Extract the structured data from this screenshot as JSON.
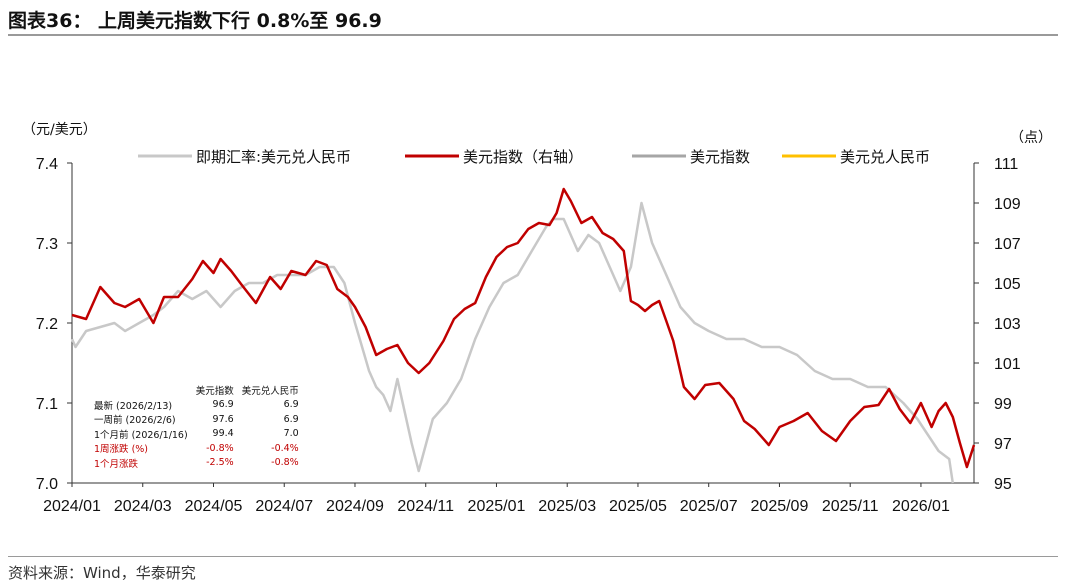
{
  "title": "图表36： 上周美元指数下行 0.8%至 96.9",
  "source": "资料来源：Wind，华泰研究",
  "colors": {
    "cny": "#c8c8c8",
    "dxy": "#c00000",
    "dxy_gray": "#a6a6a6",
    "cny_yellow": "#ffc000",
    "down": "#c00000"
  },
  "chart_data": {
    "type": "line",
    "left_unit": "（元/美元）",
    "right_unit": "（点）",
    "y_left": {
      "range": [
        7.0,
        7.4
      ],
      "ticks": [
        "7.0",
        "7.1",
        "7.2",
        "7.3",
        "7.4"
      ]
    },
    "y_right": {
      "range": [
        95,
        111
      ],
      "ticks": [
        "95",
        "97",
        "99",
        "101",
        "103",
        "105",
        "107",
        "109",
        "111"
      ]
    },
    "x": {
      "range": [
        0,
        25.5
      ],
      "ticks": [
        "2024/01",
        "2024/03",
        "2024/05",
        "2024/07",
        "2024/09",
        "2024/11",
        "2025/01",
        "2025/03",
        "2025/05",
        "2025/07",
        "2025/09",
        "2025/11",
        "2026/01"
      ]
    },
    "legend": [
      "即期汇率:美元兑人民币",
      "美元指数（右轴）",
      "美元指数",
      "美元兑人民币"
    ],
    "series": [
      {
        "name": "即期汇率:美元兑人民币",
        "axis": "left",
        "x": [
          0.0,
          0.1,
          0.4,
          0.8,
          1.2,
          1.5,
          1.9,
          2.3,
          2.6,
          3.0,
          3.4,
          3.8,
          4.2,
          4.6,
          5.0,
          5.4,
          5.8,
          6.2,
          6.6,
          7.0,
          7.4,
          7.7,
          8.0,
          8.2,
          8.4,
          8.6,
          8.8,
          9.0,
          9.2,
          9.4,
          9.6,
          9.8,
          10.2,
          10.6,
          11.0,
          11.4,
          11.8,
          12.2,
          12.6,
          13.0,
          13.4,
          13.6,
          13.9,
          14.3,
          14.6,
          14.9,
          15.2,
          15.5,
          15.8,
          16.1,
          16.4,
          16.8,
          17.2,
          17.6,
          18.0,
          18.5,
          19.0,
          19.5,
          20.0,
          20.5,
          21.0,
          21.5,
          22.0,
          22.5,
          23.0,
          23.5,
          23.9,
          24.2,
          24.5,
          24.8,
          24.9
        ],
        "y": [
          7.18,
          7.17,
          7.19,
          7.195,
          7.2,
          7.19,
          7.2,
          7.21,
          7.22,
          7.24,
          7.23,
          7.24,
          7.22,
          7.24,
          7.25,
          7.25,
          7.26,
          7.26,
          7.26,
          7.27,
          7.27,
          7.25,
          7.2,
          7.17,
          7.14,
          7.12,
          7.11,
          7.09,
          7.13,
          7.09,
          7.05,
          7.015,
          7.08,
          7.1,
          7.13,
          7.18,
          7.22,
          7.25,
          7.26,
          7.29,
          7.32,
          7.33,
          7.33,
          7.29,
          7.31,
          7.3,
          7.27,
          7.24,
          7.27,
          7.35,
          7.3,
          7.26,
          7.22,
          7.2,
          7.19,
          7.18,
          7.18,
          7.17,
          7.17,
          7.16,
          7.14,
          7.13,
          7.13,
          7.12,
          7.12,
          7.1,
          7.08,
          7.06,
          7.04,
          7.03,
          7.0
        ]
      },
      {
        "name": "美元指数（右轴）",
        "axis": "right",
        "x": [
          0.0,
          0.4,
          0.8,
          1.2,
          1.5,
          1.9,
          2.3,
          2.6,
          3.0,
          3.4,
          3.7,
          4.0,
          4.2,
          4.5,
          4.8,
          5.2,
          5.6,
          5.9,
          6.2,
          6.6,
          6.9,
          7.2,
          7.5,
          7.8,
          8.0,
          8.3,
          8.6,
          8.9,
          9.2,
          9.5,
          9.8,
          10.1,
          10.5,
          10.8,
          11.1,
          11.4,
          11.7,
          12.0,
          12.3,
          12.6,
          12.9,
          13.2,
          13.5,
          13.7,
          13.9,
          14.1,
          14.4,
          14.7,
          15.0,
          15.3,
          15.6,
          15.8,
          16.0,
          16.2,
          16.4,
          16.6,
          16.8,
          17.0,
          17.3,
          17.6,
          17.9,
          18.3,
          18.7,
          19.0,
          19.3,
          19.7,
          20.0,
          20.4,
          20.8,
          21.2,
          21.6,
          22.0,
          22.4,
          22.8,
          23.1,
          23.4,
          23.7,
          24.0,
          24.3,
          24.5,
          24.7,
          24.9,
          25.1,
          25.3,
          25.5
        ],
        "y": [
          103.4,
          103.2,
          104.8,
          104.0,
          103.8,
          104.2,
          103.0,
          104.3,
          104.3,
          105.2,
          106.1,
          105.5,
          106.2,
          105.6,
          104.9,
          104.0,
          105.3,
          104.7,
          105.6,
          105.4,
          106.1,
          105.9,
          104.7,
          104.3,
          103.8,
          102.8,
          101.4,
          101.7,
          101.9,
          101.0,
          100.5,
          101.0,
          102.1,
          103.2,
          103.7,
          104.0,
          105.3,
          106.3,
          106.8,
          107.0,
          107.7,
          108.0,
          107.9,
          108.5,
          109.7,
          109.1,
          108.0,
          108.3,
          107.5,
          107.2,
          106.6,
          104.1,
          103.9,
          103.6,
          103.9,
          104.1,
          103.1,
          102.1,
          99.8,
          99.2,
          99.9,
          100.0,
          99.2,
          98.1,
          97.7,
          96.9,
          97.8,
          98.1,
          98.5,
          97.6,
          97.1,
          98.1,
          98.8,
          98.9,
          99.7,
          98.7,
          98.0,
          99.0,
          97.8,
          98.6,
          99.0,
          98.3,
          97.0,
          95.8,
          96.9
        ]
      },
      {
        "name": "美元指数",
        "axis": "right",
        "x": [],
        "y": []
      },
      {
        "name": "美元兑人民币",
        "axis": "left",
        "x": [],
        "y": []
      }
    ]
  },
  "inset_table": {
    "headers": [
      "",
      "美元指数",
      "美元兑人民币"
    ],
    "rows": [
      {
        "label": "最新 (2026/2/13)",
        "dxy": "96.9",
        "cny": "6.9",
        "red": false
      },
      {
        "label": "一周前 (2026/2/6)",
        "dxy": "97.6",
        "cny": "6.9",
        "red": false
      },
      {
        "label": "1个月前 (2026/1/16)",
        "dxy": "99.4",
        "cny": "7.0",
        "red": false
      },
      {
        "label": "1周涨跌 (%)",
        "dxy": "-0.8%",
        "cny": "-0.4%",
        "red": true
      },
      {
        "label": "1个月涨跌",
        "dxy": "-2.5%",
        "cny": "-0.8%",
        "red": true
      }
    ]
  }
}
